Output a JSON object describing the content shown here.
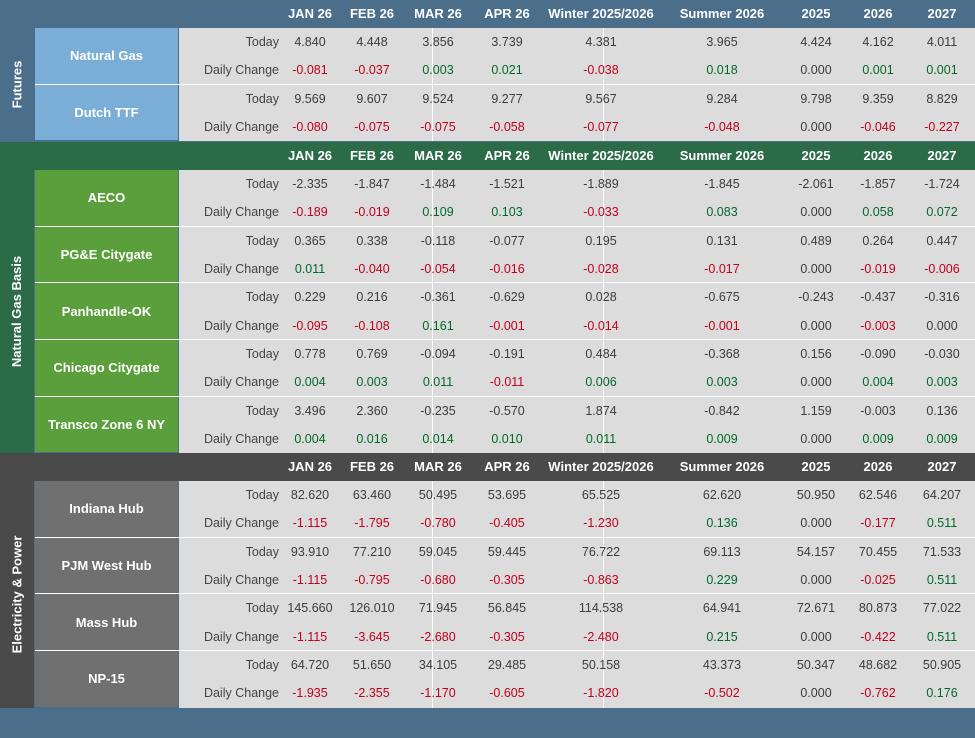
{
  "columns": [
    "JAN 26",
    "FEB 26",
    "MAR 26",
    "APR 26",
    "Winter 2025/2026",
    "Summer 2026",
    "2025",
    "2026",
    "2027"
  ],
  "row_labels": {
    "today": "Today",
    "change": "Daily Change"
  },
  "colors": {
    "futures": "#7aaed6",
    "futures_side": "#4b6e8a",
    "futures_header": "#4b6e8a",
    "basis": "#5b9e3c",
    "basis_side": "#2b6b47",
    "basis_header": "#2b6b47",
    "power": "#707070",
    "power_side": "#4a4a4a",
    "power_header": "#4a4a4a",
    "negative": "#c0001c",
    "positive": "#006a2a"
  },
  "sections": [
    {
      "title": "Futures",
      "markets": [
        {
          "name": "Natural Gas",
          "today": [
            "4.840",
            "4.448",
            "3.856",
            "3.739",
            "4.381",
            "3.965",
            "4.424",
            "4.162",
            "4.011"
          ],
          "change": [
            "-0.081",
            "-0.037",
            "0.003",
            "0.021",
            "-0.038",
            "0.018",
            "0.000",
            "0.001",
            "0.001"
          ]
        },
        {
          "name": "Dutch TTF",
          "today": [
            "9.569",
            "9.607",
            "9.524",
            "9.277",
            "9.567",
            "9.284",
            "9.798",
            "9.359",
            "8.829"
          ],
          "change": [
            "-0.080",
            "-0.075",
            "-0.075",
            "-0.058",
            "-0.077",
            "-0.048",
            "0.000",
            "-0.046",
            "-0.227"
          ]
        }
      ]
    },
    {
      "title": "Natural Gas Basis",
      "markets": [
        {
          "name": "AECO",
          "today": [
            "-2.335",
            "-1.847",
            "-1.484",
            "-1.521",
            "-1.889",
            "-1.845",
            "-2.061",
            "-1.857",
            "-1.724"
          ],
          "change": [
            "-0.189",
            "-0.019",
            "0.109",
            "0.103",
            "-0.033",
            "0.083",
            "0.000",
            "0.058",
            "0.072"
          ]
        },
        {
          "name": "PG&E Citygate",
          "today": [
            "0.365",
            "0.338",
            "-0.118",
            "-0.077",
            "0.195",
            "0.131",
            "0.489",
            "0.264",
            "0.447"
          ],
          "change": [
            "0.011",
            "-0.040",
            "-0.054",
            "-0.016",
            "-0.028",
            "-0.017",
            "0.000",
            "-0.019",
            "-0.006"
          ]
        },
        {
          "name": "Panhandle-OK",
          "today": [
            "0.229",
            "0.216",
            "-0.361",
            "-0.629",
            "0.028",
            "-0.675",
            "-0.243",
            "-0.437",
            "-0.316"
          ],
          "change": [
            "-0.095",
            "-0.108",
            "0.161",
            "-0.001",
            "-0.014",
            "-0.001",
            "0.000",
            "-0.003",
            "0.000"
          ]
        },
        {
          "name": "Chicago Citygate",
          "today": [
            "0.778",
            "0.769",
            "-0.094",
            "-0.191",
            "0.484",
            "-0.368",
            "0.156",
            "-0.090",
            "-0.030"
          ],
          "change": [
            "0.004",
            "0.003",
            "0.011",
            "-0.011",
            "0.006",
            "0.003",
            "0.000",
            "0.004",
            "0.003"
          ]
        },
        {
          "name": "Transco Zone 6 NY",
          "today": [
            "3.496",
            "2.360",
            "-0.235",
            "-0.570",
            "1.874",
            "-0.842",
            "1.159",
            "-0.003",
            "0.136"
          ],
          "change": [
            "0.004",
            "0.016",
            "0.014",
            "0.010",
            "0.011",
            "0.009",
            "0.000",
            "0.009",
            "0.009"
          ]
        }
      ]
    },
    {
      "title": "Electricity & Power",
      "markets": [
        {
          "name": "Indiana Hub",
          "today": [
            "82.620",
            "63.460",
            "50.495",
            "53.695",
            "65.525",
            "62.620",
            "50.950",
            "62.546",
            "64.207"
          ],
          "change": [
            "-1.115",
            "-1.795",
            "-0.780",
            "-0.405",
            "-1.230",
            "0.136",
            "0.000",
            "-0.177",
            "0.511"
          ]
        },
        {
          "name": "PJM West Hub",
          "today": [
            "93.910",
            "77.210",
            "59.045",
            "59.445",
            "76.722",
            "69.113",
            "54.157",
            "70.455",
            "71.533"
          ],
          "change": [
            "-1.115",
            "-0.795",
            "-0.680",
            "-0.305",
            "-0.863",
            "0.229",
            "0.000",
            "-0.025",
            "0.511"
          ]
        },
        {
          "name": "Mass Hub",
          "today": [
            "145.660",
            "126.010",
            "71.945",
            "56.845",
            "114.538",
            "64.941",
            "72.671",
            "80.873",
            "77.022"
          ],
          "change": [
            "-1.115",
            "-3.645",
            "-2.680",
            "-0.305",
            "-2.480",
            "0.215",
            "0.000",
            "-0.422",
            "0.511"
          ]
        },
        {
          "name": "NP-15",
          "today": [
            "64.720",
            "51.650",
            "34.105",
            "29.485",
            "50.158",
            "43.373",
            "50.347",
            "48.682",
            "50.905"
          ],
          "change": [
            "-1.935",
            "-2.355",
            "-1.170",
            "-0.605",
            "-1.820",
            "-0.502",
            "0.000",
            "-0.762",
            "0.176"
          ]
        }
      ]
    }
  ]
}
